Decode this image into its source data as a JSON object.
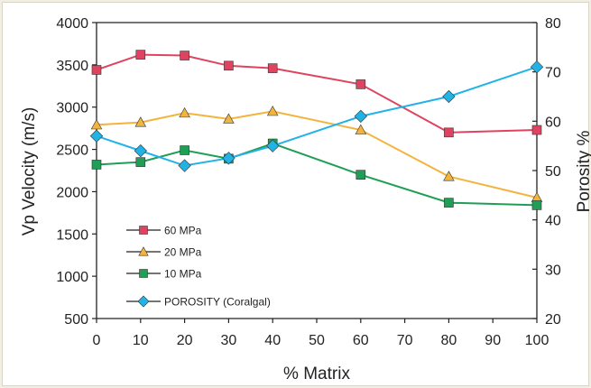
{
  "chart_data": {
    "type": "line",
    "title": "",
    "xlabel": "% Matrix",
    "ylabel": "Vp Velocity (m/s)",
    "y2label": "Porosity %",
    "x": [
      0,
      10,
      20,
      30,
      40,
      60,
      80,
      100
    ],
    "xticks": [
      "0",
      "10",
      "20",
      "30",
      "40",
      "50",
      "60",
      "70",
      "80",
      "90",
      "100"
    ],
    "yticks": [
      "500",
      "1000",
      "1500",
      "2000",
      "2500",
      "3000",
      "3500",
      "4000"
    ],
    "y2ticks": [
      "20",
      "30",
      "40",
      "50",
      "60",
      "70",
      "80"
    ],
    "xlim": [
      0,
      100
    ],
    "ylim": [
      500,
      4000
    ],
    "y2lim": [
      20,
      80
    ],
    "grid": false,
    "legend_position": "lower-left",
    "series": [
      {
        "name": "60 MPa",
        "axis": "left",
        "color": "#e0435f",
        "marker": "square",
        "values": [
          3440,
          3620,
          3610,
          3490,
          3460,
          3270,
          2700,
          2730
        ]
      },
      {
        "name": "20 MPa",
        "axis": "left",
        "color": "#f3b43e",
        "marker": "triangle",
        "values": [
          2790,
          2820,
          2930,
          2860,
          2950,
          2730,
          2180,
          1930
        ]
      },
      {
        "name": "10 MPa",
        "axis": "left",
        "color": "#1f9e55",
        "marker": "square",
        "values": [
          2320,
          2350,
          2490,
          2390,
          2570,
          2200,
          1870,
          1840
        ]
      },
      {
        "name": "POROSITY (Coralgal)",
        "axis": "right",
        "color": "#22b3e6",
        "marker": "diamond",
        "values": [
          57,
          54,
          51,
          52.5,
          55,
          61,
          65,
          71
        ]
      }
    ]
  }
}
